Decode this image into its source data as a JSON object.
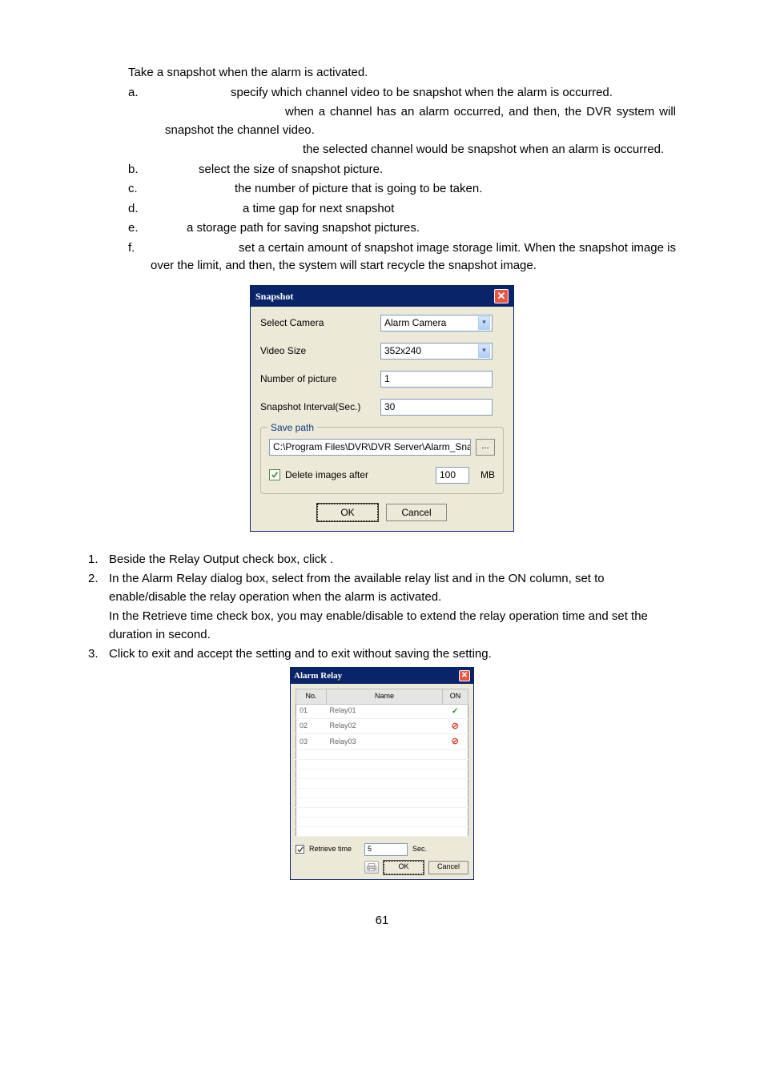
{
  "intro": "Take a snapshot when the alarm is activated.",
  "a": {
    "letter": "a.",
    "txt": "specify which channel video to be snapshot when the alarm is occurred."
  },
  "a_sub1": "when a channel has an alarm occurred, and then, the DVR system will snapshot the channel video.",
  "a_sub2": "the selected channel would be snapshot when an alarm is occurred.",
  "b": {
    "letter": "b.",
    "txt": "select the size of snapshot picture."
  },
  "c": {
    "letter": "c.",
    "txt": "the number of picture that is going to be taken."
  },
  "d": {
    "letter": "d.",
    "txt": "a time gap for next snapshot"
  },
  "e": {
    "letter": "e.",
    "txt": "a storage path for saving snapshot pictures."
  },
  "f": {
    "letter": "f.",
    "txt": "set a certain amount of snapshot image storage limit. When the snapshot image is over the limit, and then, the system will start recycle the snapshot image."
  },
  "dlg": {
    "title": "Snapshot",
    "select_camera_label": "Select Camera",
    "select_camera_value": "Alarm Camera",
    "video_size_label": "Video Size",
    "video_size_value": "352x240",
    "num_label": "Number of picture",
    "num_value": "1",
    "interval_label": "Snapshot Interval(Sec.)",
    "interval_value": "30",
    "savepath_legend": "Save path",
    "path": "C:\\Program Files\\DVR\\DVR Server\\Alarm_Sna",
    "browse": "...",
    "delete_after": "Delete images after",
    "delete_value": "100",
    "mb": "MB",
    "ok": "OK",
    "cancel": "Cancel"
  },
  "n1": {
    "num": "1.",
    "txt": "Beside the Relay Output check box, click          ."
  },
  "n2a": {
    "num": "2.",
    "txt": "In the Alarm Relay dialog box, select from the available relay list and in the ON column, set to enable/disable the relay operation when the alarm is activated."
  },
  "n2b": "In the Retrieve time check box, you may enable/disable to extend the relay operation time and set the duration in second.",
  "n3": {
    "num": "3.",
    "txt": "Click          to exit and accept the setting and                  to exit without saving the setting."
  },
  "alarm": {
    "title": "Alarm Relay",
    "col_no": "No.",
    "col_name": "Name",
    "col_on": "ON",
    "rows": [
      {
        "no": "01",
        "name": "Relay01",
        "on": "check"
      },
      {
        "no": "02",
        "name": "Relay02",
        "on": "no"
      },
      {
        "no": "03",
        "name": "Relay03",
        "on": "no"
      }
    ],
    "retrieve": "Retrieve time",
    "retrieve_val": "5",
    "sec": "Sec.",
    "ok": "OK",
    "cancel": "Cancel"
  },
  "pagenum": "61"
}
